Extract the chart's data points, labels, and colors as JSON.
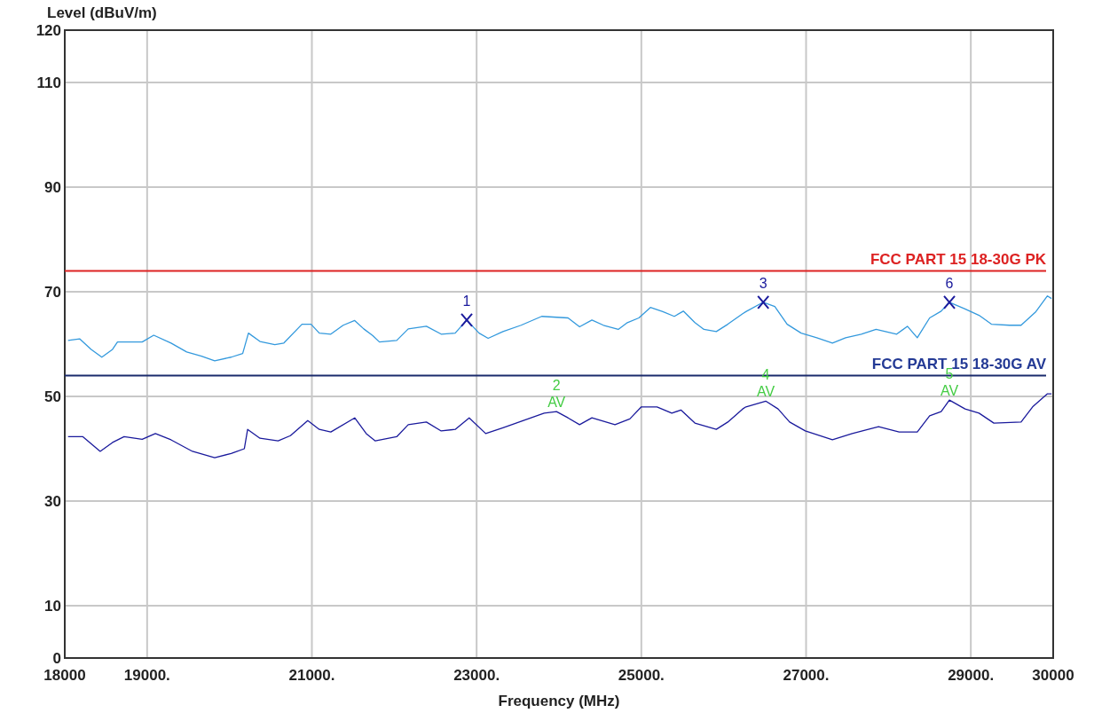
{
  "chart_data": {
    "type": "line",
    "xlabel": "Frequency (MHz)",
    "ylabel": "Level (dBuV/m)",
    "xlim": [
      18000,
      30000
    ],
    "xticks": [
      18000,
      {
        "value": 19000,
        "label": "19000."
      },
      {
        "value": 21000,
        "label": "21000."
      },
      {
        "value": 23000,
        "label": "23000."
      },
      {
        "value": 25000,
        "label": "25000."
      },
      {
        "value": 27000,
        "label": "27000."
      },
      {
        "value": 29000,
        "label": "29000."
      },
      30000
    ],
    "ylim": [
      0,
      120
    ],
    "yticks": [
      0,
      10,
      30,
      50,
      70,
      90,
      110,
      120
    ],
    "grid": true,
    "series": [
      {
        "color": "#3399dd",
        "x": [
          18040,
          18180,
          18320,
          18450,
          18580,
          18640,
          18800,
          18940,
          19080,
          19290,
          19480,
          19660,
          19820,
          20020,
          20160,
          20230,
          20370,
          20550,
          20660,
          20880,
          20990,
          21090,
          21230,
          21380,
          21520,
          21630,
          21740,
          21820,
          22030,
          22170,
          22390,
          22570,
          22740,
          22880,
          23030,
          23140,
          23320,
          23540,
          23790,
          24110,
          24250,
          24400,
          24540,
          24720,
          24830,
          24970,
          25110,
          25260,
          25400,
          25510,
          25650,
          25760,
          25910,
          26050,
          26230,
          26270,
          26480,
          26620,
          26770,
          26940,
          27130,
          27320,
          27480,
          27670,
          27850,
          28100,
          28230,
          28350,
          28500,
          28640,
          28740,
          28930,
          29100,
          29250,
          29470,
          29610,
          29790,
          29930,
          29980
        ],
        "values": [
          60.7,
          61.0,
          59.0,
          57.5,
          59.0,
          60.4,
          60.4,
          60.4,
          61.7,
          60.2,
          58.5,
          57.7,
          56.8,
          57.5,
          58.2,
          62.1,
          60.5,
          59.9,
          60.2,
          63.8,
          63.8,
          62.1,
          61.9,
          63.6,
          64.5,
          62.9,
          61.6,
          60.4,
          60.7,
          62.9,
          63.4,
          61.9,
          62.1,
          64.6,
          62.1,
          61.1,
          62.4,
          63.6,
          65.3,
          65.0,
          63.3,
          64.6,
          63.6,
          62.8,
          64.1,
          65.0,
          67.0,
          66.2,
          65.3,
          66.3,
          64.1,
          62.8,
          62.4,
          63.8,
          65.8,
          66.2,
          68.0,
          67.2,
          63.8,
          62.1,
          61.2,
          60.2,
          61.2,
          61.9,
          62.8,
          61.9,
          63.4,
          61.2,
          65.0,
          66.3,
          68.0,
          66.7,
          65.5,
          63.8,
          63.6,
          63.6,
          66.2,
          69.2,
          68.7
        ]
      },
      {
        "color": "#1a1a9c",
        "x": [
          18040,
          18220,
          18430,
          18580,
          18720,
          18940,
          19100,
          19290,
          19550,
          19820,
          20020,
          20180,
          20220,
          20370,
          20590,
          20740,
          20950,
          21090,
          21230,
          21520,
          21660,
          21770,
          22030,
          22170,
          22390,
          22570,
          22740,
          22910,
          23110,
          23320,
          23570,
          23820,
          23970,
          24110,
          24250,
          24400,
          24680,
          24860,
          25000,
          25190,
          25370,
          25480,
          25650,
          25910,
          26050,
          26230,
          26270,
          26510,
          26660,
          26800,
          26990,
          27320,
          27560,
          27880,
          28130,
          28350,
          28500,
          28640,
          28740,
          28930,
          29100,
          29280,
          29610,
          29750,
          29930,
          29980
        ],
        "values": [
          42.3,
          42.3,
          39.5,
          41.2,
          42.3,
          41.8,
          42.9,
          41.7,
          39.5,
          38.3,
          39.1,
          40.0,
          43.7,
          42.0,
          41.5,
          42.5,
          45.4,
          43.7,
          43.2,
          45.9,
          42.9,
          41.5,
          42.3,
          44.6,
          45.1,
          43.4,
          43.7,
          45.9,
          42.9,
          44.0,
          45.4,
          46.8,
          47.1,
          45.9,
          44.6,
          45.9,
          44.6,
          45.7,
          48.0,
          48.0,
          46.8,
          47.4,
          44.9,
          43.7,
          45.1,
          47.6,
          48.0,
          49.1,
          47.6,
          45.1,
          43.4,
          41.7,
          42.9,
          44.2,
          43.2,
          43.2,
          46.3,
          47.1,
          49.3,
          47.6,
          46.8,
          44.9,
          45.1,
          48.0,
          50.5,
          50.5
        ]
      },
      {
        "type": "scatter",
        "marker": "cross",
        "color": "#1a1a9c",
        "x": [
          22880,
          26480,
          28740
        ],
        "values": [
          64.6,
          68.0,
          68.0
        ]
      }
    ],
    "ref_lines": [
      {
        "axis": "y",
        "value": 74,
        "label": "FCC PART 15 18-30G PK",
        "color": "#dd2222"
      },
      {
        "axis": "y",
        "value": 54,
        "label": "FCC PART 15 18-30G AV",
        "color": "#1a2a6c"
      }
    ],
    "annotations": [
      {
        "text": "1",
        "x": 22880,
        "y": 64.6
      },
      {
        "text": "2",
        "x": 23970,
        "y": 47.1
      },
      {
        "text": "AV",
        "x": 23970,
        "y": 47.1
      },
      {
        "text": "3",
        "x": 26480,
        "y": 68.0
      },
      {
        "text": "4",
        "x": 26510,
        "y": 49.1
      },
      {
        "text": "AV",
        "x": 26510,
        "y": 49.1
      },
      {
        "text": "6",
        "x": 28740,
        "y": 68.0
      },
      {
        "text": "5",
        "x": 28740,
        "y": 49.3
      },
      {
        "text": "AV",
        "x": 28740,
        "y": 49.3
      }
    ]
  }
}
